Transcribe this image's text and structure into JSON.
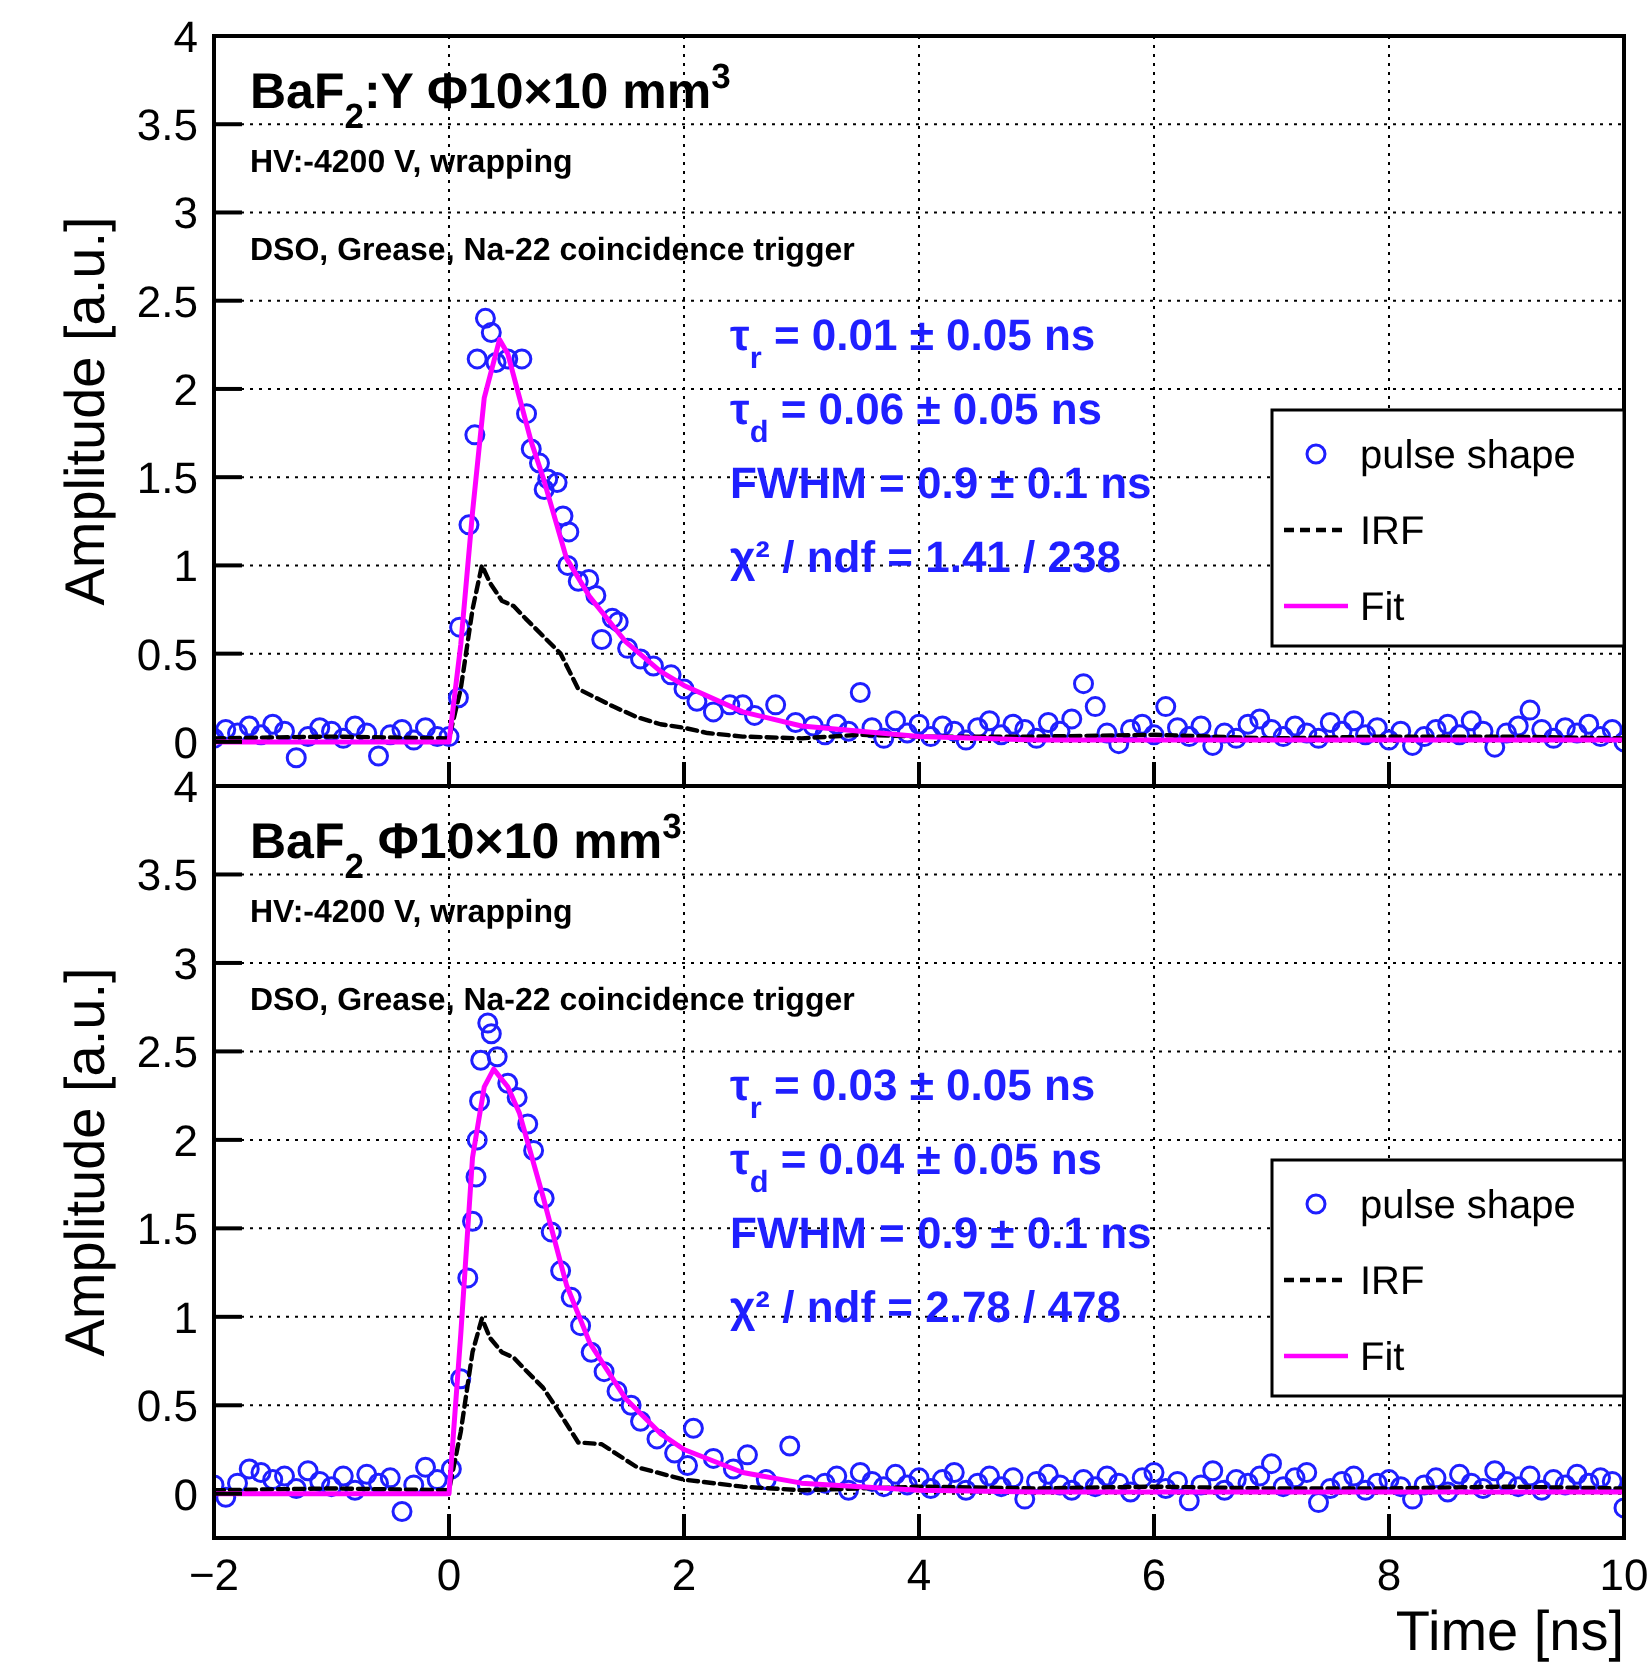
{
  "chart_data": [
    {
      "type": "scatter",
      "title": "BaF$_{2}$:Y  Φ10×10 mm$^{3}$",
      "subtitle": "HV:-4200 V, wrapping",
      "annotations": [
        "DSO, Grease, Na-22 coincidence trigger",
        "τ$_{r}$ = 0.01 ± 0.05 ns",
        "τ$_{d}$ = 0.06 ± 0.05 ns",
        "FWHM = 0.9 ± 0.1 ns",
        "χ² / ndf = 1.41 / 238"
      ],
      "ylabel": "Amplitude [a.u.]",
      "xlim": [
        -2,
        10
      ],
      "xticks": [
        -2,
        0,
        2,
        4,
        6,
        8,
        10
      ],
      "ylim": [
        -0.25,
        4
      ],
      "yticks": [
        0,
        0.5,
        1,
        1.5,
        2,
        2.5,
        3,
        3.5,
        4
      ],
      "grid": true,
      "legend": "right",
      "tick_labels": "y",
      "series": [
        {
          "name": "pulse shape",
          "marker": "circle",
          "color": "#1f1fff",
          "x": [
            -2,
            -1.9,
            -1.8,
            -1.7,
            -1.6,
            -1.5,
            -1.4,
            -1.3,
            -1.2,
            -1.1,
            -1,
            -0.9,
            -0.8,
            -0.7,
            -0.6,
            -0.5,
            -0.4,
            -0.3,
            -0.2,
            -0.1,
            0,
            0.08,
            0.09,
            0.17,
            0.22,
            0.24,
            0.31,
            0.36,
            0.4,
            0.5,
            0.62,
            0.66,
            0.7,
            0.77,
            0.81,
            0.84,
            0.92,
            0.97,
            1.01,
            1.02,
            1.1,
            1.19,
            1.25,
            1.3,
            1.39,
            1.44,
            1.52,
            1.63,
            1.74,
            1.89,
            2,
            2.11,
            2.25,
            2.39,
            2.5,
            2.6,
            2.78,
            2.95,
            3.1,
            3.2,
            3.3,
            3.4,
            3.5,
            3.6,
            3.7,
            3.8,
            3.9,
            4,
            4.1,
            4.2,
            4.3,
            4.4,
            4.5,
            4.6,
            4.7,
            4.8,
            4.9,
            5,
            5.1,
            5.2,
            5.3,
            5.4,
            5.5,
            5.6,
            5.7,
            5.8,
            5.9,
            6,
            6.1,
            6.2,
            6.3,
            6.4,
            6.5,
            6.6,
            6.7,
            6.8,
            6.9,
            7,
            7.1,
            7.2,
            7.3,
            7.4,
            7.5,
            7.6,
            7.7,
            7.8,
            7.9,
            8,
            8.1,
            8.2,
            8.3,
            8.4,
            8.5,
            8.6,
            8.7,
            8.8,
            8.9,
            9,
            9.1,
            9.2,
            9.3,
            9.4,
            9.5,
            9.6,
            9.7,
            9.8,
            9.9,
            10
          ],
          "values": [
            0.02,
            0.07,
            0.05,
            0.09,
            0.04,
            0.1,
            0.06,
            -0.09,
            0.03,
            0.08,
            0.06,
            0.02,
            0.09,
            0.05,
            -0.08,
            0.04,
            0.07,
            0.01,
            0.08,
            0.03,
            0.03,
            0.25,
            0.65,
            1.23,
            1.74,
            2.17,
            2.4,
            2.32,
            2.15,
            2.17,
            2.17,
            1.86,
            1.66,
            1.58,
            1.43,
            1.49,
            1.47,
            1.28,
            1.0,
            1.19,
            0.91,
            0.92,
            0.83,
            0.58,
            0.7,
            0.68,
            0.53,
            0.47,
            0.43,
            0.38,
            0.3,
            0.23,
            0.17,
            0.21,
            0.21,
            0.15,
            0.21,
            0.11,
            0.09,
            0.04,
            0.1,
            0.06,
            0.28,
            0.08,
            0.02,
            0.12,
            0.05,
            0.1,
            0.03,
            0.09,
            0.06,
            0.01,
            0.08,
            0.12,
            0.04,
            0.1,
            0.07,
            0.02,
            0.11,
            0.06,
            0.13,
            0.33,
            0.2,
            0.05,
            -0.01,
            0.07,
            0.1,
            0.04,
            0.2,
            0.08,
            0.03,
            0.09,
            -0.02,
            0.05,
            0.02,
            0.1,
            0.13,
            0.07,
            0.03,
            0.09,
            0.05,
            0.02,
            0.11,
            0.06,
            0.12,
            0.04,
            0.08,
            0.01,
            0.06,
            -0.02,
            0.03,
            0.07,
            0.1,
            0.04,
            0.12,
            0.06,
            -0.03,
            0.05,
            0.09,
            0.18,
            0.07,
            0.02,
            0.08,
            0.05,
            0.1,
            0.03,
            0.07,
            0.0
          ]
        },
        {
          "name": "IRF",
          "type": "line",
          "line_style": "dashed",
          "color": "#000000",
          "x": [
            -2,
            -1,
            0,
            0.1,
            0.2,
            0.28,
            0.35,
            0.45,
            0.55,
            0.65,
            0.8,
            0.95,
            1.1,
            1.25,
            1.4,
            1.6,
            1.8,
            2,
            2.2,
            2.5,
            3,
            3.5,
            4,
            5,
            6,
            7,
            8,
            9,
            10
          ],
          "values": [
            0.02,
            0.03,
            0.02,
            0.3,
            0.75,
            1.0,
            0.9,
            0.8,
            0.77,
            0.7,
            0.6,
            0.5,
            0.3,
            0.25,
            0.2,
            0.14,
            0.1,
            0.08,
            0.05,
            0.03,
            0.02,
            0.04,
            0.03,
            0.03,
            0.04,
            0.02,
            0.03,
            0.03,
            0.02
          ]
        },
        {
          "name": "Fit",
          "type": "line",
          "line_style": "solid",
          "color": "#ff00ff",
          "x": [
            -2,
            0,
            0.1,
            0.2,
            0.3,
            0.43,
            0.5,
            0.6,
            0.7,
            0.8,
            1,
            1.2,
            1.5,
            1.8,
            2,
            2.5,
            3,
            4,
            5,
            6,
            8,
            10
          ],
          "values": [
            0,
            0,
            0.55,
            1.3,
            1.95,
            2.28,
            2.2,
            1.95,
            1.7,
            1.5,
            1.04,
            0.82,
            0.57,
            0.4,
            0.32,
            0.17,
            0.09,
            0.03,
            0.01,
            0.01,
            0.01,
            0.01
          ]
        }
      ]
    },
    {
      "type": "scatter",
      "title": "BaF$_{2}$  Φ10×10 mm$^{3}$",
      "subtitle": "HV:-4200 V, wrapping",
      "annotations": [
        "DSO, Grease, Na-22 coincidence trigger",
        "τ$_{r}$ = 0.03  ± 0.05 ns",
        "τ$_{d}$ = 0.04 ± 0.05 ns",
        "FWHM = 0.9 ± 0.1 ns",
        "χ² / ndf = 2.78 / 478"
      ],
      "xlabel": "Time [ns]",
      "ylabel": "Amplitude [a.u.]",
      "xlim": [
        -2,
        10
      ],
      "xticks": [
        -2,
        0,
        2,
        4,
        6,
        8,
        10
      ],
      "ylim": [
        -0.25,
        4
      ],
      "yticks": [
        0,
        0.5,
        1,
        1.5,
        2,
        2.5,
        3,
        3.5,
        4
      ],
      "grid": true,
      "legend": "right",
      "series": [
        {
          "name": "pulse shape",
          "marker": "circle",
          "color": "#1f1fff",
          "x": [
            -2,
            -1.9,
            -1.8,
            -1.7,
            -1.6,
            -1.5,
            -1.4,
            -1.3,
            -1.2,
            -1.1,
            -1,
            -0.9,
            -0.8,
            -0.7,
            -0.6,
            -0.5,
            -0.4,
            -0.3,
            -0.2,
            -0.1,
            0.02,
            0.1,
            0.16,
            0.2,
            0.23,
            0.24,
            0.26,
            0.27,
            0.33,
            0.36,
            0.41,
            0.5,
            0.58,
            0.67,
            0.72,
            0.81,
            0.87,
            0.95,
            1.04,
            1.12,
            1.21,
            1.32,
            1.43,
            1.55,
            1.63,
            1.77,
            1.92,
            2.03,
            2.08,
            2.25,
            2.42,
            2.54,
            2.7,
            2.9,
            3.05,
            3.2,
            3.3,
            3.4,
            3.5,
            3.6,
            3.7,
            3.8,
            3.9,
            4,
            4.1,
            4.2,
            4.3,
            4.4,
            4.5,
            4.6,
            4.7,
            4.8,
            4.9,
            5,
            5.1,
            5.2,
            5.3,
            5.4,
            5.5,
            5.6,
            5.7,
            5.8,
            5.9,
            6,
            6.1,
            6.2,
            6.3,
            6.4,
            6.5,
            6.6,
            6.7,
            6.8,
            6.9,
            7,
            7.1,
            7.2,
            7.3,
            7.4,
            7.5,
            7.6,
            7.7,
            7.8,
            7.9,
            8,
            8.1,
            8.2,
            8.3,
            8.4,
            8.5,
            8.6,
            8.7,
            8.8,
            8.9,
            9,
            9.1,
            9.2,
            9.3,
            9.4,
            9.5,
            9.6,
            9.7,
            9.8,
            9.9,
            10
          ],
          "values": [
            0.05,
            -0.02,
            0.06,
            0.14,
            0.12,
            0.08,
            0.1,
            0.03,
            0.13,
            0.07,
            0.04,
            0.1,
            0.02,
            0.11,
            0.06,
            0.09,
            -0.1,
            0.05,
            0.15,
            0.08,
            0.14,
            0.65,
            1.22,
            1.54,
            1.79,
            2.0,
            2.22,
            2.45,
            2.66,
            2.6,
            2.47,
            2.32,
            2.24,
            2.09,
            1.94,
            1.67,
            1.48,
            1.26,
            1.11,
            0.95,
            0.8,
            0.69,
            0.58,
            0.5,
            0.41,
            0.31,
            0.23,
            0.16,
            0.37,
            0.2,
            0.14,
            0.22,
            0.08,
            0.27,
            0.05,
            0.06,
            0.1,
            0.02,
            0.12,
            0.07,
            0.04,
            0.11,
            0.05,
            0.09,
            0.03,
            0.08,
            0.12,
            0.02,
            0.06,
            0.1,
            0.04,
            0.09,
            -0.03,
            0.07,
            0.11,
            0.05,
            0.02,
            0.08,
            0.04,
            0.1,
            0.06,
            0.01,
            0.09,
            0.12,
            0.03,
            0.07,
            -0.04,
            0.05,
            0.13,
            0.02,
            0.08,
            0.06,
            0.1,
            0.17,
            0.04,
            0.09,
            0.12,
            -0.05,
            0.03,
            0.07,
            0.1,
            0.02,
            0.06,
            0.08,
            0.04,
            -0.03,
            0.05,
            0.09,
            0.01,
            0.11,
            0.06,
            0.03,
            0.13,
            0.07,
            0.04,
            0.1,
            0.02,
            0.08,
            0.05,
            0.11,
            0.06,
            0.09,
            0.07,
            -0.08
          ]
        },
        {
          "name": "IRF",
          "type": "line",
          "line_style": "dashed",
          "color": "#000000",
          "x": [
            -2,
            -1,
            0,
            0.1,
            0.2,
            0.28,
            0.35,
            0.45,
            0.55,
            0.65,
            0.8,
            0.9,
            1.1,
            1.3,
            1.6,
            2,
            2.5,
            3,
            4,
            5,
            6,
            7,
            8,
            9,
            10
          ],
          "values": [
            0.02,
            0.03,
            0.02,
            0.35,
            0.8,
            0.99,
            0.88,
            0.8,
            0.77,
            0.7,
            0.6,
            0.5,
            0.29,
            0.28,
            0.15,
            0.08,
            0.04,
            0.02,
            0.04,
            0.03,
            0.04,
            0.03,
            0.03,
            0.04,
            0.03
          ]
        },
        {
          "name": "Fit",
          "type": "line",
          "line_style": "solid",
          "color": "#ff00ff",
          "x": [
            -2,
            0,
            0.1,
            0.2,
            0.3,
            0.38,
            0.5,
            0.6,
            0.8,
            1,
            1.2,
            1.5,
            1.8,
            2,
            2.5,
            3,
            4,
            5,
            6,
            8,
            10
          ],
          "values": [
            0,
            0,
            0.9,
            1.9,
            2.3,
            2.4,
            2.3,
            2.15,
            1.68,
            1.18,
            0.85,
            0.54,
            0.34,
            0.25,
            0.12,
            0.06,
            0.02,
            0.01,
            0.01,
            0.01,
            0.01
          ]
        }
      ]
    }
  ]
}
